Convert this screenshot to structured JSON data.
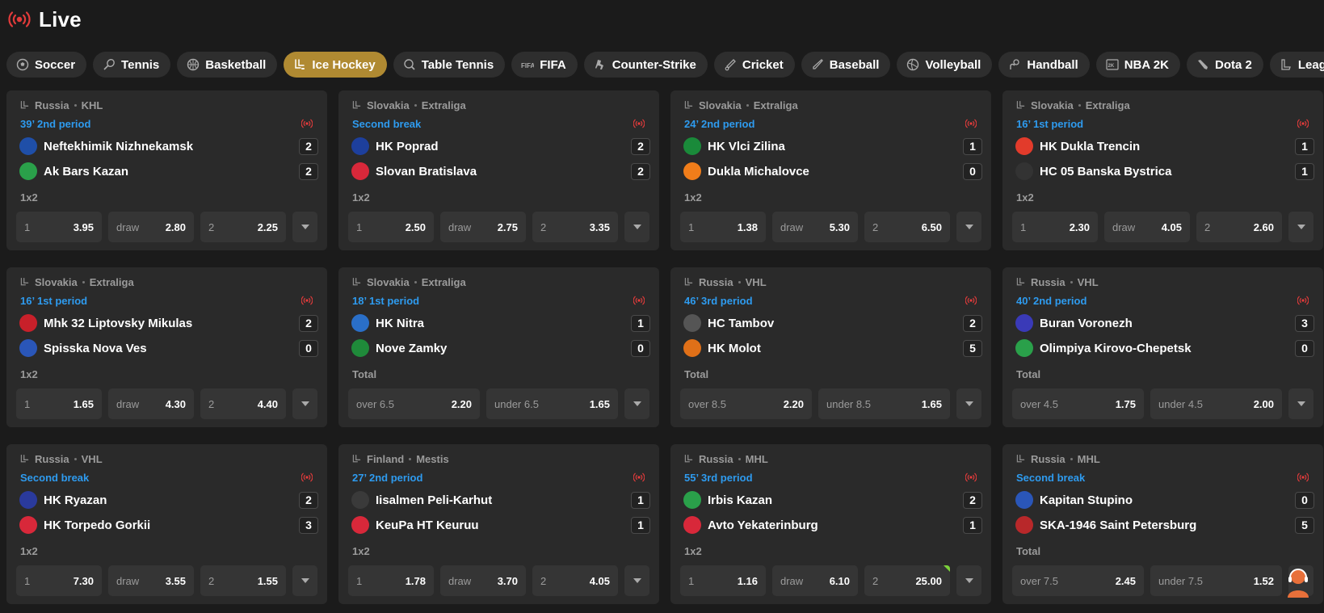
{
  "header": {
    "title": "Live"
  },
  "colors": {
    "accent": "#b08a32",
    "live": "#e23b3b",
    "period": "#2e9bef"
  },
  "tabs": [
    {
      "label": "Soccer",
      "icon": "soccer-icon"
    },
    {
      "label": "Tennis",
      "icon": "tennis-icon"
    },
    {
      "label": "Basketball",
      "icon": "basketball-icon"
    },
    {
      "label": "Ice Hockey",
      "icon": "ice-hockey-icon",
      "active": true
    },
    {
      "label": "Table Tennis",
      "icon": "table-tennis-icon"
    },
    {
      "label": "FIFA",
      "icon": "fifa-icon"
    },
    {
      "label": "Counter-Strike",
      "icon": "counter-strike-icon"
    },
    {
      "label": "Cricket",
      "icon": "cricket-icon"
    },
    {
      "label": "Baseball",
      "icon": "baseball-icon"
    },
    {
      "label": "Volleyball",
      "icon": "volleyball-icon"
    },
    {
      "label": "Handball",
      "icon": "handball-icon"
    },
    {
      "label": "NBA 2K",
      "icon": "nba2k-icon"
    },
    {
      "label": "Dota 2",
      "icon": "dota2-icon"
    },
    {
      "label": "League of Legends",
      "icon": "lol-icon"
    }
  ],
  "matches": [
    {
      "country": "Russia",
      "league": "KHL",
      "period": "39’ 2nd period",
      "home": {
        "name": "Neftekhimik Nizhnekamsk",
        "score": "2",
        "logo": "#1f4fa8"
      },
      "away": {
        "name": "Ak Bars Kazan",
        "score": "2",
        "logo": "#2aa04a"
      },
      "market": "1x2",
      "odds": [
        {
          "label": "1",
          "value": "3.95"
        },
        {
          "label": "draw",
          "value": "2.80"
        },
        {
          "label": "2",
          "value": "2.25"
        }
      ]
    },
    {
      "country": "Slovakia",
      "league": "Extraliga",
      "period": "Second break",
      "home": {
        "name": "HK Poprad",
        "score": "2",
        "logo": "#1d3f9c"
      },
      "away": {
        "name": "Slovan Bratislava",
        "score": "2",
        "logo": "#d8283a"
      },
      "market": "1x2",
      "odds": [
        {
          "label": "1",
          "value": "2.50"
        },
        {
          "label": "draw",
          "value": "2.75"
        },
        {
          "label": "2",
          "value": "3.35"
        }
      ]
    },
    {
      "country": "Slovakia",
      "league": "Extraliga",
      "period": "24’ 2nd period",
      "home": {
        "name": "HK Vlci Zilina",
        "score": "1",
        "logo": "#1a8a3a"
      },
      "away": {
        "name": "Dukla Michalovce",
        "score": "0",
        "logo": "#f07d1a"
      },
      "market": "1x2",
      "odds": [
        {
          "label": "1",
          "value": "1.38"
        },
        {
          "label": "draw",
          "value": "5.30"
        },
        {
          "label": "2",
          "value": "6.50"
        }
      ]
    },
    {
      "country": "Slovakia",
      "league": "Extraliga",
      "period": "16’ 1st period",
      "home": {
        "name": "HK Dukla Trencin",
        "score": "1",
        "logo": "#e23b2b"
      },
      "away": {
        "name": "HC 05 Banska Bystrica",
        "score": "1",
        "logo": "#333333"
      },
      "market": "1x2",
      "odds": [
        {
          "label": "1",
          "value": "2.30"
        },
        {
          "label": "draw",
          "value": "4.05"
        },
        {
          "label": "2",
          "value": "2.60"
        }
      ]
    },
    {
      "country": "Slovakia",
      "league": "Extraliga",
      "period": "16’ 1st period",
      "home": {
        "name": "Mhk 32 Liptovsky Mikulas",
        "score": "2",
        "logo": "#c8202a"
      },
      "away": {
        "name": "Spisska Nova Ves",
        "score": "0",
        "logo": "#2a56b8"
      },
      "market": "1x2",
      "odds": [
        {
          "label": "1",
          "value": "1.65"
        },
        {
          "label": "draw",
          "value": "4.30"
        },
        {
          "label": "2",
          "value": "4.40"
        }
      ]
    },
    {
      "country": "Slovakia",
      "league": "Extraliga",
      "period": "18’ 1st period",
      "home": {
        "name": "HK Nitra",
        "score": "1",
        "logo": "#2a6fc8"
      },
      "away": {
        "name": "Nove Zamky",
        "score": "0",
        "logo": "#1f8a3a"
      },
      "market": "Total",
      "odds": [
        {
          "label": "over 6.5",
          "value": "2.20"
        },
        {
          "label": "under 6.5",
          "value": "1.65"
        }
      ]
    },
    {
      "country": "Russia",
      "league": "VHL",
      "period": "46’ 3rd period",
      "home": {
        "name": "HC Tambov",
        "score": "2",
        "logo": "#555555"
      },
      "away": {
        "name": "HK Molot",
        "score": "5",
        "logo": "#e07018"
      },
      "market": "Total",
      "odds": [
        {
          "label": "over 8.5",
          "value": "2.20"
        },
        {
          "label": "under 8.5",
          "value": "1.65"
        }
      ]
    },
    {
      "country": "Russia",
      "league": "VHL",
      "period": "40’ 2nd period",
      "home": {
        "name": "Buran Voronezh",
        "score": "3",
        "logo": "#3a3ab8"
      },
      "away": {
        "name": "Olimpiya Kirovo-Chepetsk",
        "score": "0",
        "logo": "#2aa04a"
      },
      "market": "Total",
      "odds": [
        {
          "label": "over 4.5",
          "value": "1.75"
        },
        {
          "label": "under 4.5",
          "value": "2.00"
        }
      ]
    },
    {
      "country": "Russia",
      "league": "VHL",
      "period": "Second break",
      "home": {
        "name": "HK Ryazan",
        "score": "2",
        "logo": "#2a3a9c"
      },
      "away": {
        "name": "HK Torpedo Gorkii",
        "score": "3",
        "logo": "#d8283a"
      },
      "market": "1x2",
      "odds": [
        {
          "label": "1",
          "value": "7.30"
        },
        {
          "label": "draw",
          "value": "3.55"
        },
        {
          "label": "2",
          "value": "1.55"
        }
      ]
    },
    {
      "country": "Finland",
      "league": "Mestis",
      "period": "27’ 2nd period",
      "home": {
        "name": "Iisalmen Peli-Karhut",
        "score": "1",
        "logo": "#3a3a3a"
      },
      "away": {
        "name": "KeuPa HT Keuruu",
        "score": "1",
        "logo": "#d8283a"
      },
      "market": "1x2",
      "odds": [
        {
          "label": "1",
          "value": "1.78"
        },
        {
          "label": "draw",
          "value": "3.70"
        },
        {
          "label": "2",
          "value": "4.05"
        }
      ]
    },
    {
      "country": "Russia",
      "league": "MHL",
      "period": "55’ 3rd period",
      "home": {
        "name": "Irbis Kazan",
        "score": "2",
        "logo": "#2aa04a"
      },
      "away": {
        "name": "Avto Yekaterinburg",
        "score": "1",
        "logo": "#d8283a"
      },
      "market": "1x2",
      "odds": [
        {
          "label": "1",
          "value": "1.16"
        },
        {
          "label": "draw",
          "value": "6.10"
        },
        {
          "label": "2",
          "value": "25.00",
          "up": true
        }
      ]
    },
    {
      "country": "Russia",
      "league": "MHL",
      "period": "Second break",
      "home": {
        "name": "Kapitan Stupino",
        "score": "0",
        "logo": "#2a56b8"
      },
      "away": {
        "name": "SKA-1946 Saint Petersburg",
        "score": "5",
        "logo": "#b8282a"
      },
      "market": "Total",
      "odds": [
        {
          "label": "over 7.5",
          "value": "2.45"
        },
        {
          "label": "under 7.5",
          "value": "1.52"
        }
      ]
    }
  ]
}
